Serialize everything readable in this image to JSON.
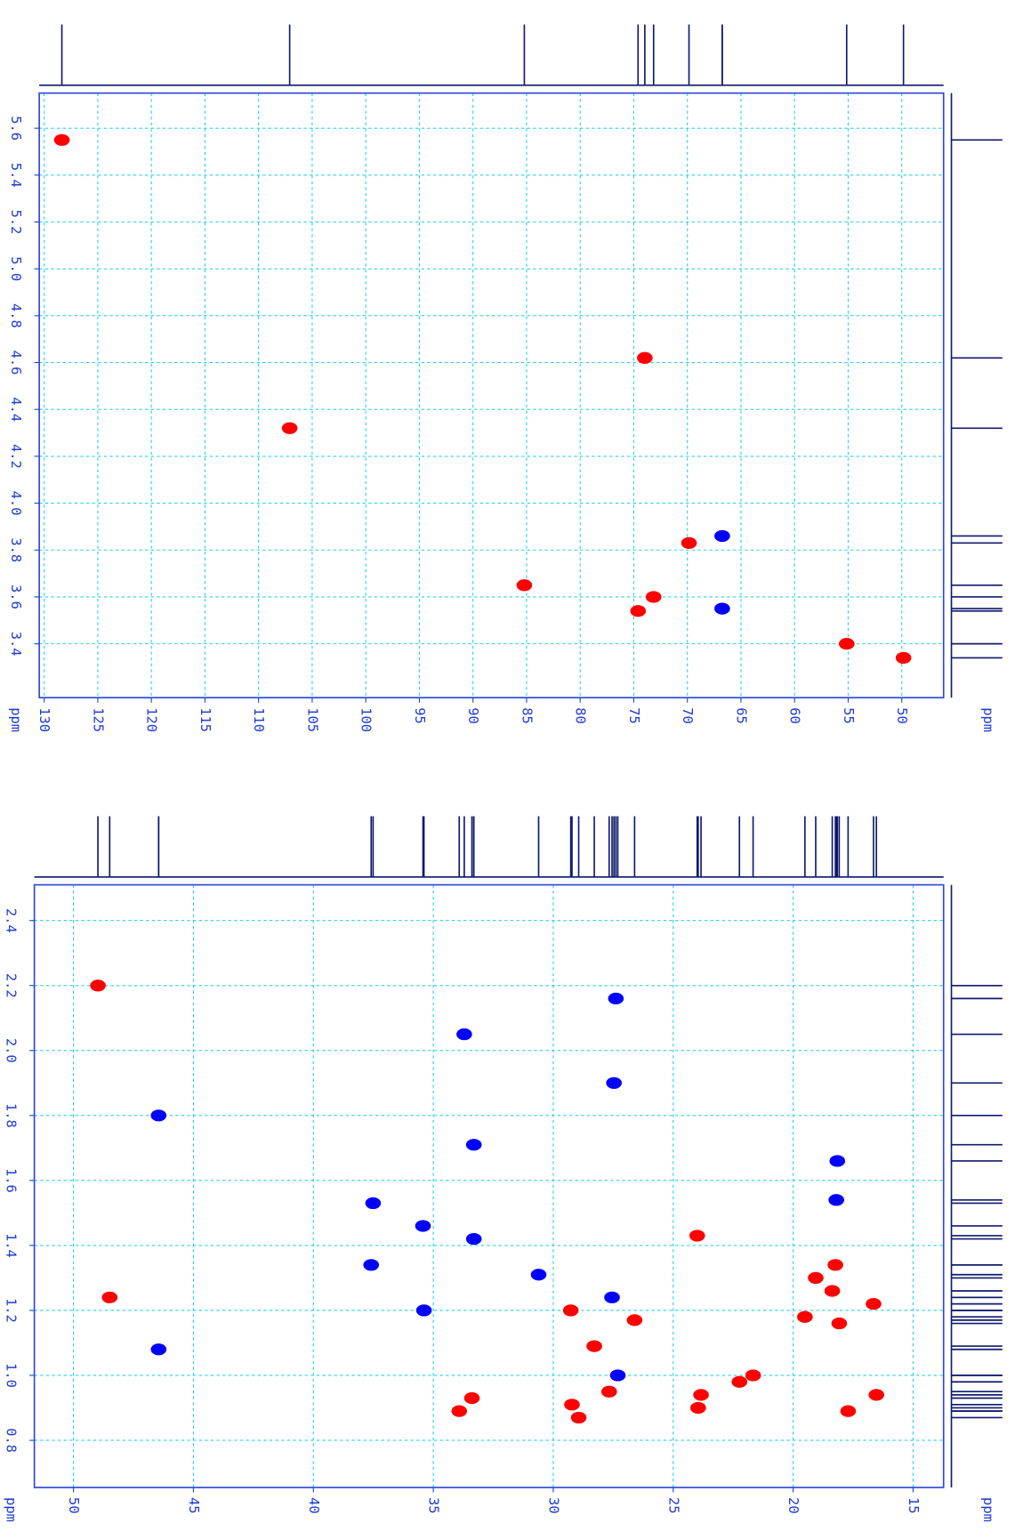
{
  "chart_data": [
    {
      "type": "scatter",
      "xlabel": "ppm",
      "ylabel": "ppm",
      "xlim": [
        130.46,
        46.1
      ],
      "ylim": [
        3.17,
        5.75
      ],
      "xticks": [
        130,
        125,
        120,
        115,
        110,
        105,
        100,
        95,
        90,
        85,
        80,
        75,
        70,
        65,
        60,
        55,
        50
      ],
      "yticks": [
        5.6,
        5.4,
        5.2,
        {
          "value": 5.0,
          "label": "5.0"
        },
        4.8,
        4.6,
        4.4,
        4.2,
        {
          "value": 4.0,
          "label": "4.0"
        },
        3.8,
        3.6,
        3.4
      ],
      "grid": true,
      "series": [
        {
          "color": "#ff0000",
          "x": [
            128.35,
            107.1,
            73.97,
            69.85,
            85.21,
            73.15,
            74.6,
            55.14,
            49.84
          ],
          "values": [
            5.55,
            4.32,
            4.62,
            3.83,
            3.65,
            3.6,
            3.54,
            3.4,
            3.34
          ]
        },
        {
          "color": "#0000ff",
          "x": [
            66.75,
            66.75
          ],
          "values": [
            3.86,
            3.55
          ]
        }
      ]
    },
    {
      "type": "scatter",
      "xlabel": "ppm",
      "ylabel": "ppm",
      "xlim": [
        51.63,
        13.73
      ],
      "ylim": [
        0.655,
        2.51
      ],
      "xticks": [
        50,
        45,
        40,
        35,
        30,
        25,
        20,
        15
      ],
      "yticks": [
        2.4,
        2.2,
        {
          "value": 2.0,
          "label": "2.0"
        },
        1.8,
        1.6,
        1.4,
        1.2,
        {
          "value": 1.0,
          "label": "1.0"
        },
        0.8
      ],
      "grid": true,
      "series": [
        {
          "color": "#ff0000",
          "x": [
            48.98,
            48.49,
            33.39,
            33.92,
            29.22,
            28.29,
            29.27,
            26.61,
            23.84,
            23.96,
            24.0,
            19.51,
            18.08,
            18.37,
            19.06,
            18.24,
            16.65,
            17.71,
            16.53,
            21.67,
            28.94,
            27.67,
            22.24
          ],
          "values": [
            2.2,
            1.24,
            0.93,
            0.89,
            0.91,
            1.09,
            1.2,
            1.17,
            0.94,
            0.9,
            1.43,
            1.18,
            1.16,
            1.26,
            1.3,
            1.34,
            1.22,
            0.89,
            0.94,
            1.0,
            0.87,
            0.95,
            0.98
          ]
        },
        {
          "color": "#0000ff",
          "x": [
            46.45,
            46.45,
            37.51,
            37.59,
            35.39,
            35.43,
            33.71,
            33.31,
            33.31,
            30.61,
            27.39,
            27.47,
            27.55,
            27.31,
            18.16,
            18.2
          ],
          "values": [
            1.8,
            1.08,
            1.53,
            1.34,
            1.2,
            1.46,
            2.05,
            1.71,
            1.42,
            1.31,
            2.16,
            1.9,
            1.24,
            1.0,
            1.66,
            1.54
          ]
        }
      ]
    }
  ]
}
